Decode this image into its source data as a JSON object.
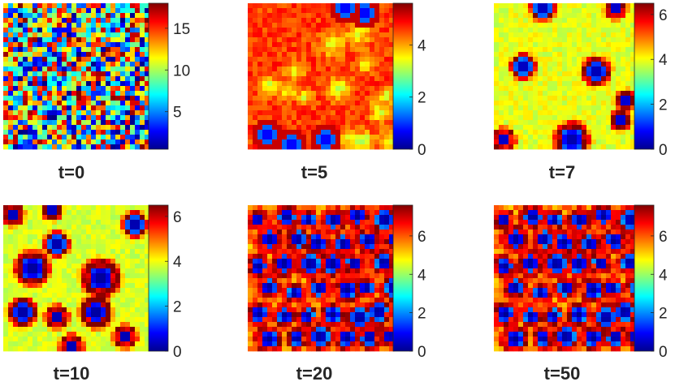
{
  "chart_data": [
    {
      "type": "heatmap",
      "title": "t=0",
      "colormap": "jet",
      "clim": [
        0.5,
        18
      ],
      "colorbar_ticks": [
        5,
        10,
        15
      ],
      "grid": "off",
      "pattern": "uniform random noise, 30x30 cells, values roughly 0.5-18"
    },
    {
      "type": "heatmap",
      "title": "t=5",
      "colormap": "jet",
      "clim": [
        0,
        5.6
      ],
      "colorbar_ticks": [
        0,
        2,
        4
      ],
      "grid": "off",
      "pattern": "mostly orange-red field with emerging faint yellow spots and a few dark blue spots near edges"
    },
    {
      "type": "heatmap",
      "title": "t=7",
      "colormap": "jet",
      "clim": [
        0,
        6.5
      ],
      "colorbar_ticks": [
        0,
        2,
        4,
        6
      ],
      "grid": "off",
      "pattern": "yellow-green background with isolated blue spots surrounded by red rings"
    },
    {
      "type": "heatmap",
      "title": "t=10",
      "colormap": "jet",
      "clim": [
        0,
        6.5
      ],
      "colorbar_ticks": [
        0,
        2,
        4,
        6
      ],
      "grid": "off",
      "pattern": "larger blue spots with red rings on a yellow background"
    },
    {
      "type": "heatmap",
      "title": "t=20",
      "colormap": "jet",
      "clim": [
        0,
        7.6
      ],
      "colorbar_ticks": [
        0,
        2,
        4,
        6
      ],
      "grid": "off",
      "pattern": "dense array of dark blue spots on an orange-red background"
    },
    {
      "type": "heatmap",
      "title": "t=50",
      "colormap": "jet",
      "clim": [
        0,
        7.6
      ],
      "colorbar_ticks": [
        0,
        2,
        4,
        6
      ],
      "grid": "off",
      "pattern": "dense array of dark blue spots on an orange-red background, nearly identical to t=20"
    }
  ]
}
